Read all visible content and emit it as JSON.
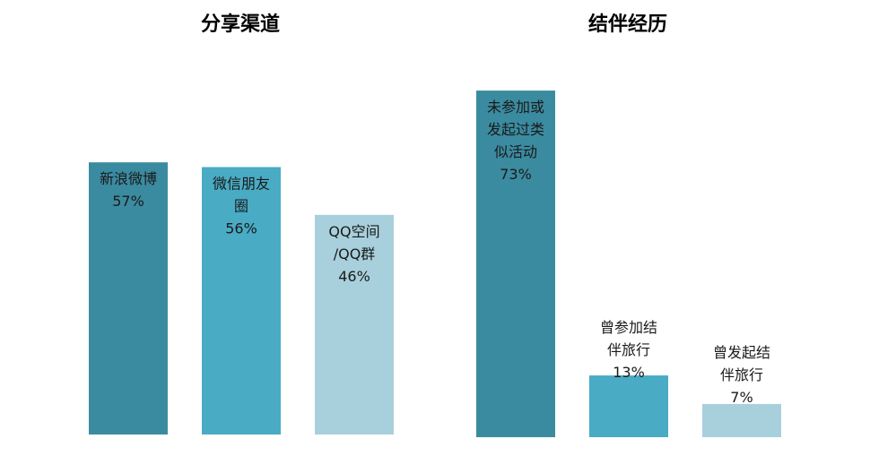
{
  "charts": [
    {
      "type": "bar",
      "title": "分享渠道",
      "ylim": [
        0,
        100
      ],
      "grid": false,
      "categories": [
        {
          "name": "新浪微博",
          "label_lines": [
            "新浪微博",
            "57%"
          ],
          "value": 57,
          "color": "#3b8ba0"
        },
        {
          "name": "微信朋友圈",
          "label_lines": [
            "微信朋友",
            "圈",
            "56%"
          ],
          "value": 56,
          "color": "#49abc4"
        },
        {
          "name": "QQ空间/QQ群",
          "label_lines": [
            "QQ空间",
            "/QQ群",
            "46%"
          ],
          "value": 46,
          "color": "#a8d0dc"
        }
      ]
    },
    {
      "type": "bar",
      "title": "结伴经历",
      "ylim": [
        0,
        100
      ],
      "grid": false,
      "categories": [
        {
          "name": "未参加或发起过类似活动",
          "label_lines": [
            "未参加或",
            "发起过类",
            "似活动",
            "73%"
          ],
          "value": 73,
          "color": "#3b8ba0"
        },
        {
          "name": "曾参加结伴旅行",
          "label_lines": [
            "曾参加结",
            "伴旅行",
            "13%"
          ],
          "value": 13,
          "color": "#49abc4"
        },
        {
          "name": "曾发起结伴旅行",
          "label_lines": [
            "曾发起结",
            "伴旅行",
            "7%"
          ],
          "value": 7,
          "color": "#a8d0dc"
        }
      ]
    }
  ]
}
